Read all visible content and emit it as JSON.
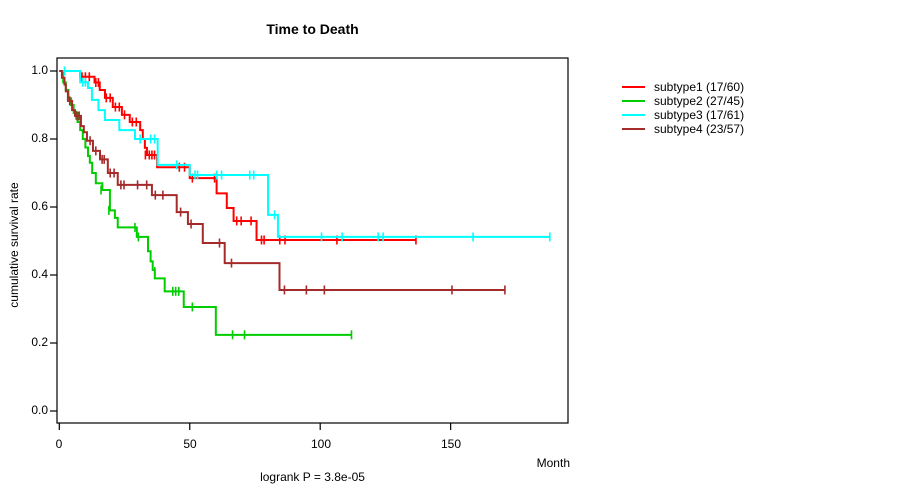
{
  "chart_data": {
    "type": "line",
    "variant": "kaplan-meier-step",
    "title": "Time to Death",
    "xlabel": "Month",
    "ylabel": "cumulative survival rate",
    "annotation": "logrank P = 3.8e-05",
    "xlim": [
      0,
      195
    ],
    "ylim": [
      0.0,
      1.0
    ],
    "xticks": [
      0,
      50,
      100,
      150
    ],
    "yticks": [
      "0.0",
      "0.2",
      "0.4",
      "0.6",
      "0.8",
      "1.0"
    ],
    "grid": "off",
    "legend_position": "right-outside",
    "frame_color": "#000000",
    "series": [
      {
        "name": "subtype1",
        "label": "subtype1 (17/60)",
        "color": "#FF0000",
        "end_month": 136.7,
        "steps": [
          [
            0,
            1.0
          ],
          [
            8,
            0.983
          ],
          [
            13.5,
            0.966
          ],
          [
            15.5,
            0.944
          ],
          [
            17.5,
            0.921
          ],
          [
            20.5,
            0.894
          ],
          [
            24,
            0.871
          ],
          [
            27,
            0.85
          ],
          [
            31,
            0.826
          ],
          [
            32,
            0.8
          ],
          [
            32.8,
            0.774
          ],
          [
            33.6,
            0.753
          ],
          [
            37.5,
            0.717
          ],
          [
            50,
            0.685
          ],
          [
            60.3,
            0.64
          ],
          [
            64.2,
            0.597
          ],
          [
            66.8,
            0.559
          ],
          [
            75.6,
            0.503
          ]
        ],
        "censors": [
          [
            8.7,
            0.983
          ],
          [
            10,
            0.983
          ],
          [
            11.5,
            0.983
          ],
          [
            14,
            0.966
          ],
          [
            15,
            0.966
          ],
          [
            18,
            0.921
          ],
          [
            19.5,
            0.921
          ],
          [
            21.5,
            0.894
          ],
          [
            23,
            0.894
          ],
          [
            25,
            0.871
          ],
          [
            28,
            0.85
          ],
          [
            29.5,
            0.85
          ],
          [
            33,
            0.753
          ],
          [
            34.5,
            0.753
          ],
          [
            35.5,
            0.753
          ],
          [
            36.5,
            0.753
          ],
          [
            46,
            0.717
          ],
          [
            48,
            0.717
          ],
          [
            51,
            0.685
          ],
          [
            59.5,
            0.685
          ],
          [
            68,
            0.559
          ],
          [
            69.7,
            0.559
          ],
          [
            73.5,
            0.559
          ],
          [
            77.5,
            0.503
          ],
          [
            78.5,
            0.503
          ],
          [
            84.5,
            0.503
          ],
          [
            86.5,
            0.503
          ],
          [
            106.4,
            0.503
          ],
          [
            136.7,
            0.503
          ]
        ]
      },
      {
        "name": "subtype2",
        "label": "subtype2 (27/45)",
        "color": "#00CD00",
        "end_month": 112,
        "steps": [
          [
            0,
            1.0
          ],
          [
            1.5,
            0.966
          ],
          [
            2.5,
            0.944
          ],
          [
            3.5,
            0.92
          ],
          [
            4.5,
            0.9
          ],
          [
            5.5,
            0.877
          ],
          [
            7,
            0.85
          ],
          [
            8,
            0.826
          ],
          [
            9,
            0.8
          ],
          [
            10,
            0.775
          ],
          [
            11,
            0.75
          ],
          [
            11.7,
            0.73
          ],
          [
            12.6,
            0.7
          ],
          [
            14,
            0.67
          ],
          [
            16.5,
            0.65
          ],
          [
            19.4,
            0.59
          ],
          [
            21.3,
            0.568
          ],
          [
            22.4,
            0.54
          ],
          [
            29.7,
            0.512
          ],
          [
            34,
            0.47
          ],
          [
            35,
            0.44
          ],
          [
            35.8,
            0.415
          ],
          [
            36.6,
            0.39
          ],
          [
            40.4,
            0.352
          ],
          [
            47.7,
            0.306
          ],
          [
            60,
            0.224
          ]
        ],
        "censors": [
          [
            6.4,
            0.87
          ],
          [
            16,
            0.65
          ],
          [
            19,
            0.59
          ],
          [
            29,
            0.54
          ],
          [
            30.3,
            0.512
          ],
          [
            36.6,
            0.41
          ],
          [
            43.5,
            0.352
          ],
          [
            44.6,
            0.352
          ],
          [
            45.8,
            0.352
          ],
          [
            51,
            0.306
          ],
          [
            66.4,
            0.224
          ],
          [
            71,
            0.224
          ],
          [
            112,
            0.224
          ]
        ]
      },
      {
        "name": "subtype3",
        "label": "subtype3 (17/61)",
        "color": "#00FFFF",
        "end_month": 188,
        "steps": [
          [
            0,
            1.0
          ],
          [
            8,
            0.967
          ],
          [
            11,
            0.95
          ],
          [
            12.5,
            0.915
          ],
          [
            15,
            0.885
          ],
          [
            17.5,
            0.856
          ],
          [
            23,
            0.826
          ],
          [
            29,
            0.8
          ],
          [
            37.7,
            0.724
          ],
          [
            50,
            0.694
          ],
          [
            80,
            0.577
          ],
          [
            83.8,
            0.512
          ]
        ],
        "censors": [
          [
            2,
            1.0
          ],
          [
            9,
            0.967
          ],
          [
            10,
            0.967
          ],
          [
            31,
            0.8
          ],
          [
            35,
            0.8
          ],
          [
            36.5,
            0.8
          ],
          [
            45,
            0.724
          ],
          [
            52,
            0.694
          ],
          [
            53,
            0.694
          ],
          [
            60.3,
            0.694
          ],
          [
            62.2,
            0.694
          ],
          [
            73,
            0.694
          ],
          [
            74.5,
            0.694
          ],
          [
            82.5,
            0.577
          ],
          [
            100.5,
            0.512
          ],
          [
            108.4,
            0.512
          ],
          [
            122.2,
            0.512
          ],
          [
            124.1,
            0.512
          ],
          [
            158.6,
            0.512
          ],
          [
            188,
            0.512
          ]
        ]
      },
      {
        "name": "subtype4",
        "label": "subtype4 (23/57)",
        "color": "#A52A2A",
        "end_month": 170.8,
        "steps": [
          [
            0,
            1.0
          ],
          [
            1,
            0.98
          ],
          [
            2,
            0.96
          ],
          [
            2.5,
            0.94
          ],
          [
            3.3,
            0.912
          ],
          [
            4.9,
            0.885
          ],
          [
            6,
            0.868
          ],
          [
            8.3,
            0.838
          ],
          [
            9.4,
            0.82
          ],
          [
            10.6,
            0.795
          ],
          [
            12.9,
            0.765
          ],
          [
            15.6,
            0.74
          ],
          [
            18.6,
            0.7
          ],
          [
            22.4,
            0.665
          ],
          [
            35.5,
            0.635
          ],
          [
            45,
            0.585
          ],
          [
            49.3,
            0.55
          ],
          [
            55,
            0.494
          ],
          [
            63.4,
            0.435
          ],
          [
            84.4,
            0.356
          ]
        ],
        "censors": [
          [
            4,
            0.912
          ],
          [
            6.8,
            0.868
          ],
          [
            7.6,
            0.868
          ],
          [
            11.8,
            0.795
          ],
          [
            14,
            0.765
          ],
          [
            16.4,
            0.74
          ],
          [
            17.2,
            0.74
          ],
          [
            19.5,
            0.7
          ],
          [
            21,
            0.7
          ],
          [
            23.6,
            0.665
          ],
          [
            24.8,
            0.665
          ],
          [
            30,
            0.665
          ],
          [
            33.5,
            0.665
          ],
          [
            36.8,
            0.635
          ],
          [
            39.7,
            0.635
          ],
          [
            46.5,
            0.585
          ],
          [
            50.5,
            0.55
          ],
          [
            61.4,
            0.494
          ],
          [
            66,
            0.435
          ],
          [
            86.3,
            0.356
          ],
          [
            94.7,
            0.356
          ],
          [
            101.6,
            0.356
          ],
          [
            150.5,
            0.356
          ],
          [
            170.8,
            0.356
          ]
        ]
      }
    ]
  }
}
